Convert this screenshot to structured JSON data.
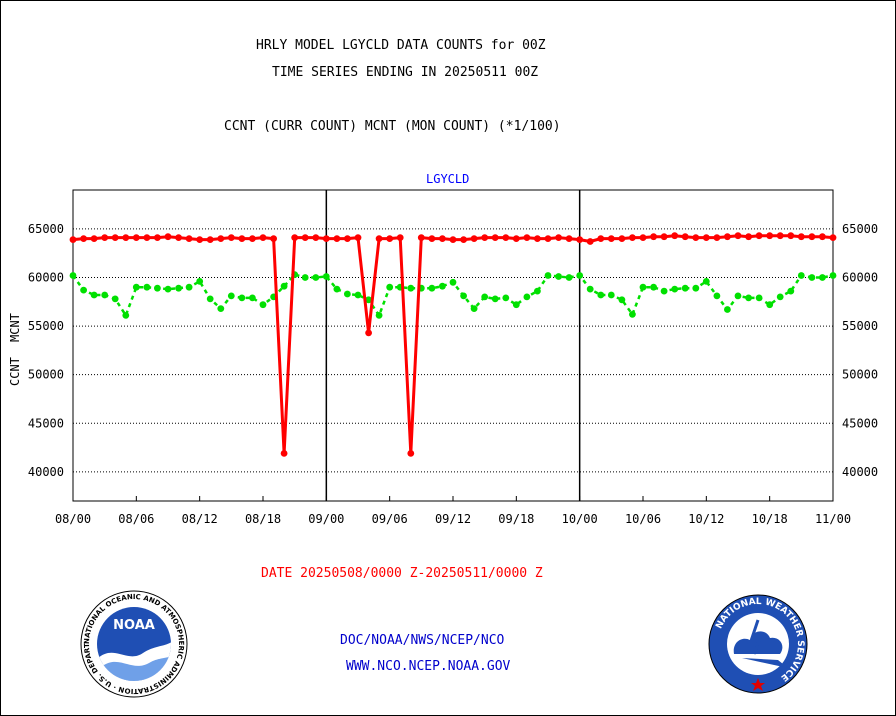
{
  "header": {
    "title_line1": "HRLY MODEL LGYCLD DATA COUNTS for 00Z",
    "title_line2": "TIME SERIES ENDING IN 20250511 00Z",
    "subtitle": "CCNT (CURR COUNT) MCNT (MON COUNT) (*1/100)"
  },
  "footer": {
    "date_range": "DATE 20250508/0000 Z-20250511/0000 Z",
    "org_path": "DOC/NOAA/NWS/NCEP/NCO",
    "website": "WWW.NCO.NCEP.NOAA.GOV",
    "noaa_logo_text": "NOAA",
    "noaa_ring_text": "NATIONAL OCEANIC AND ATMOSPHERIC ADMINISTRATION · U.S. DEPARTMENT OF COMMERCE ·",
    "nws_ring_text": "NATIONAL WEATHER SERVICE"
  },
  "colors": {
    "ccnt": "#ff0000",
    "mcnt": "#00e000",
    "plot_label": "#0000ff",
    "footer_red": "#ff0000",
    "footer_blue": "#0000cc"
  },
  "chart_data": {
    "type": "line",
    "plot_label": "LGYCLD",
    "ylabel_ccnt": "CCNT",
    "ylabel_mcnt": "MCNT",
    "ylim": [
      37000,
      69000
    ],
    "yticks": [
      40000,
      45000,
      50000,
      55000,
      60000,
      65000
    ],
    "ytick_labels": [
      "40000",
      "45000",
      "50000",
      "55000",
      "60000",
      "65000"
    ],
    "xlim": [
      0,
      72
    ],
    "xticks": [
      0,
      6,
      12,
      18,
      24,
      30,
      36,
      42,
      48,
      54,
      60,
      66,
      72
    ],
    "xtick_labels": [
      "08/00",
      "08/06",
      "08/12",
      "08/18",
      "09/00",
      "09/06",
      "09/12",
      "09/18",
      "10/00",
      "10/06",
      "10/12",
      "10/18",
      "11/00"
    ],
    "day_dividers": [
      24,
      48
    ],
    "grid": true,
    "series": [
      {
        "name": "CCNT",
        "values": [
          63900,
          64000,
          64000,
          64100,
          64100,
          64100,
          64100,
          64100,
          64100,
          64200,
          64100,
          64000,
          63900,
          63900,
          64000,
          64100,
          64000,
          64000,
          64100,
          64000,
          41900,
          64100,
          64100,
          64100,
          64000,
          64000,
          64000,
          64100,
          54300,
          64000,
          64000,
          64100,
          41900,
          64100,
          64000,
          64000,
          63900,
          63900,
          64000,
          64100,
          64100,
          64100,
          64000,
          64100,
          64000,
          64000,
          64100,
          64000,
          63900,
          63700,
          64000,
          64000,
          64000,
          64100,
          64100,
          64200,
          64200,
          64300,
          64200,
          64100,
          64100,
          64100,
          64200,
          64300,
          64200,
          64300,
          64300,
          64300,
          64300,
          64200,
          64200,
          64200,
          64100
        ]
      },
      {
        "name": "MCNT",
        "values": [
          60200,
          58700,
          58200,
          58200,
          57800,
          56100,
          59000,
          59000,
          58900,
          58800,
          58900,
          59000,
          59600,
          57800,
          56800,
          58100,
          57900,
          57900,
          57200,
          58000,
          59100,
          60300,
          60000,
          60000,
          60100,
          58800,
          58300,
          58200,
          57700,
          56100,
          59000,
          59000,
          58900,
          58900,
          58900,
          59100,
          59500,
          58100,
          56800,
          58000,
          57800,
          57900,
          57200,
          58000,
          58600,
          60200,
          60100,
          60000,
          60200,
          58800,
          58200,
          58200,
          57700,
          56200,
          59000,
          59000,
          58600,
          58800,
          58900,
          58900,
          59600,
          58100,
          56700,
          58100,
          57900,
          57900,
          57200,
          58000,
          58600,
          60200,
          60000,
          60000,
          60200
        ]
      }
    ]
  }
}
